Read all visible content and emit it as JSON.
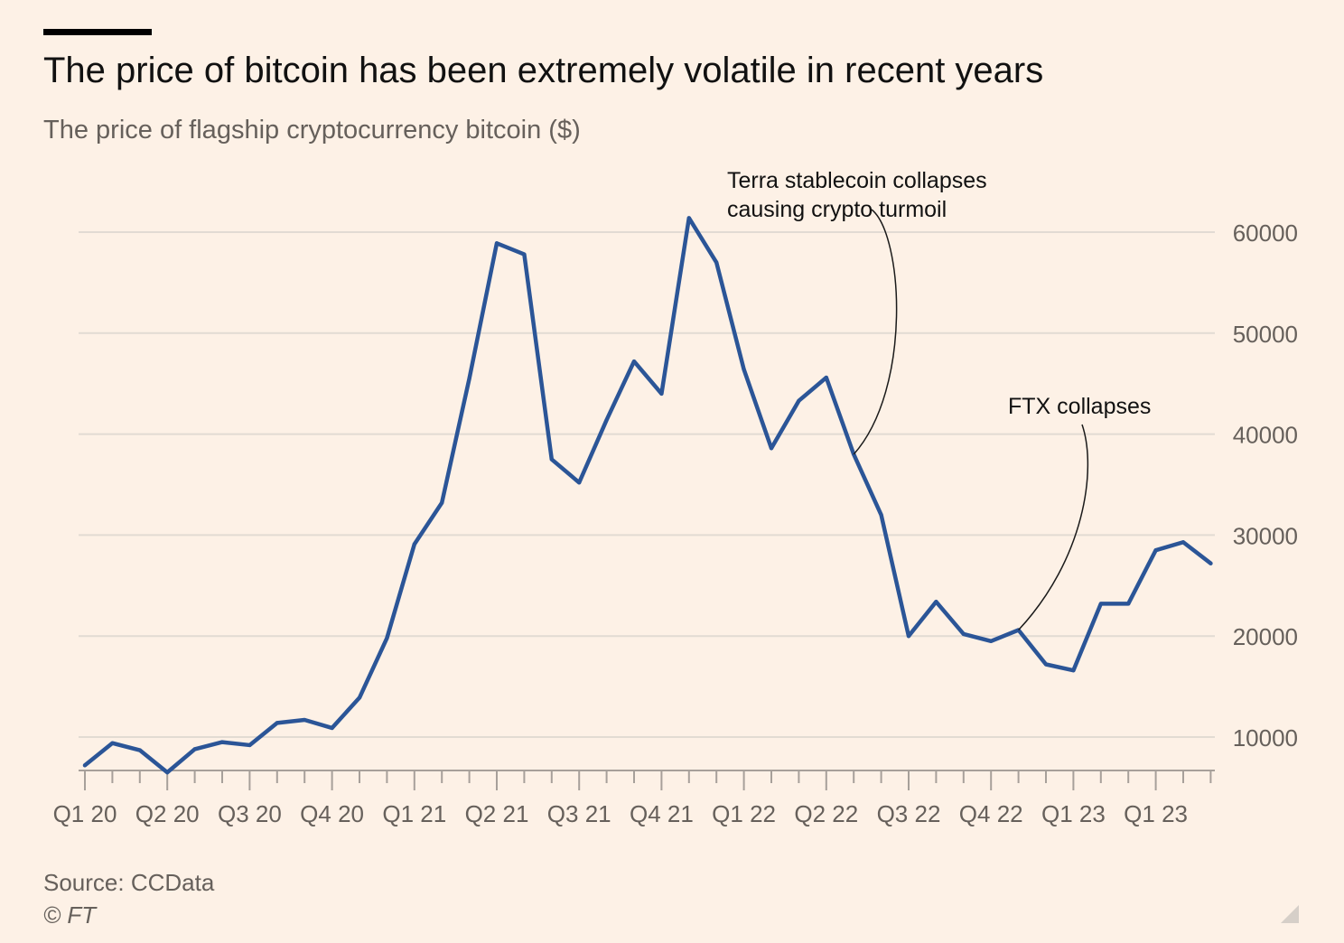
{
  "title": "The price of bitcoin has been extremely volatile in recent years",
  "subtitle": "The price of flagship cryptocurrency bitcoin ($)",
  "source": "Source: CCData",
  "credit": "© FT",
  "chart_data": {
    "type": "line",
    "x_tick_labels": [
      "Q1 20",
      "Q2 20",
      "Q3 20",
      "Q4 20",
      "Q1 21",
      "Q2 21",
      "Q3 21",
      "Q4 21",
      "Q1 22",
      "Q2 22",
      "Q3 22",
      "Q4 22",
      "Q1 23",
      "Q1 23"
    ],
    "y_ticks": [
      10000,
      20000,
      30000,
      40000,
      50000,
      60000
    ],
    "y_tick_labels": [
      "10000",
      "20000",
      "30000",
      "40000",
      "50000",
      "60000"
    ],
    "ylim": [
      6500,
      62000
    ],
    "y_axis_side": "right",
    "grid": true,
    "line_color": "#2b5597",
    "series": [
      {
        "values": [
          7200,
          9400,
          8700,
          6500,
          8800,
          9500,
          9200,
          11400,
          11700,
          10900,
          13900,
          19800,
          29100,
          33200,
          45500,
          58900,
          57800,
          37500,
          35200,
          41400,
          47200,
          44000,
          61400,
          57000,
          46400,
          38600,
          43300,
          45600,
          38000,
          32000,
          20000,
          23400,
          20200,
          19500,
          20600,
          17200,
          16600,
          23200,
          23200,
          28500,
          29300,
          27200
        ]
      }
    ],
    "annotations": [
      {
        "text_lines": [
          "Terra stablecoin collapses",
          "causing crypto turmoil"
        ],
        "point_index": 28
      },
      {
        "text_lines": [
          "FTX collapses"
        ],
        "point_index": 34
      }
    ]
  }
}
